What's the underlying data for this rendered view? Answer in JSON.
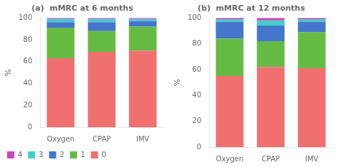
{
  "chart_data": [
    {
      "type": "bar",
      "title": "(a)  mMRC at 6 months",
      "ylabel": "%",
      "categories": [
        "Oxygen",
        "CPAP",
        "IMV"
      ],
      "series": [
        {
          "name": "0",
          "color": "#F07070",
          "values": [
            63,
            69,
            70
          ]
        },
        {
          "name": "1",
          "color": "#66BB44",
          "values": [
            28,
            19,
            22
          ]
        },
        {
          "name": "2",
          "color": "#4477CC",
          "values": [
            5,
            8,
            5
          ]
        },
        {
          "name": "3",
          "color": "#44CCCC",
          "values": [
            3,
            3,
            2
          ]
        },
        {
          "name": "4",
          "color": "#CC44BB",
          "values": [
            1,
            1,
            1
          ]
        }
      ],
      "stacked": true,
      "ylim": [
        0,
        100
      ],
      "yticks": [
        0,
        20,
        40,
        60,
        80,
        100
      ],
      "grid": false,
      "legend": "lower left"
    },
    {
      "type": "bar",
      "title": "(b)  mMRC at 12 months",
      "ylabel": "%",
      "categories": [
        "Oxygen",
        "CPAP",
        "IMV"
      ],
      "series": [
        {
          "name": "0",
          "color": "#F07070",
          "values": [
            55,
            62,
            61
          ]
        },
        {
          "name": "1",
          "color": "#66BB44",
          "values": [
            29,
            20,
            28
          ]
        },
        {
          "name": "2",
          "color": "#4477CC",
          "values": [
            13,
            12,
            8
          ]
        },
        {
          "name": "3",
          "color": "#44CCCC",
          "values": [
            2,
            4,
            2
          ]
        },
        {
          "name": "4",
          "color": "#CC44BB",
          "values": [
            1,
            2,
            1
          ]
        }
      ],
      "stacked": true,
      "ylim": [
        0,
        100
      ],
      "yticks": [
        0,
        20,
        40,
        60,
        80,
        100
      ],
      "grid": false
    }
  ]
}
